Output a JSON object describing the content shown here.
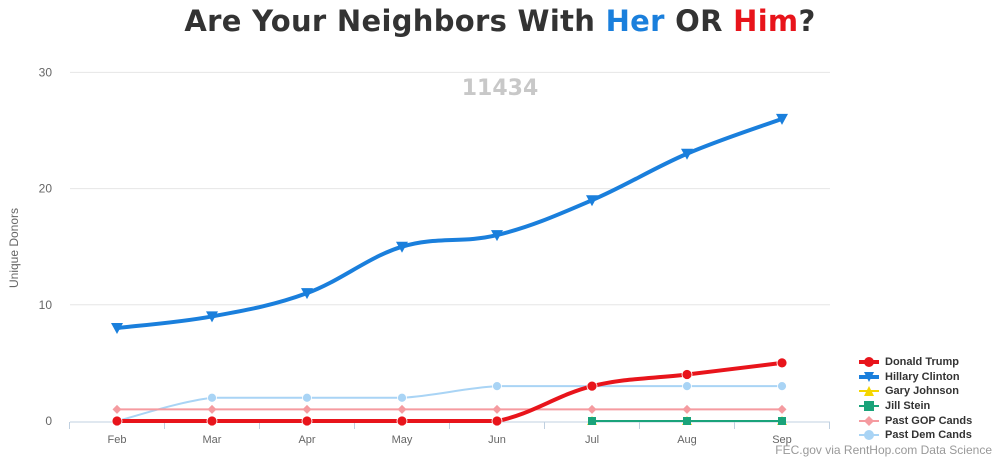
{
  "title": {
    "prefix": "Are Your Neighbors With ",
    "her": "Her",
    "middle": " OR ",
    "him": "Him",
    "suffix": "?"
  },
  "watermark": "11434",
  "credit": "FEC.gov via RentHop.com Data Science",
  "colors": {
    "trump": "#e8141b",
    "clinton": "#1a7fdc",
    "johnson": "#f5d600",
    "stein": "#1aa37a",
    "past_gop": "#f59ba0",
    "past_dem": "#a9d4f5",
    "title_text": "#333333",
    "grid": "#e6e6e6"
  },
  "chart_data": {
    "type": "line",
    "title": "Are Your Neighbors With Her OR Him?",
    "xlabel": "",
    "ylabel": "Unique Donors",
    "categories": [
      "Feb",
      "Mar",
      "Apr",
      "May",
      "Jun",
      "Jul",
      "Aug",
      "Sep"
    ],
    "y_ticks": [
      0,
      10,
      20,
      30
    ],
    "ylim": [
      0,
      30
    ],
    "grid": true,
    "legend_position": "bottom-right",
    "series": [
      {
        "name": "Donald Trump",
        "key": "trump",
        "marker": "circle",
        "values": [
          0,
          0,
          0,
          0,
          0,
          3,
          4,
          5
        ]
      },
      {
        "name": "Hillary Clinton",
        "key": "clinton",
        "marker": "triangle-down",
        "values": [
          8,
          9,
          11,
          15,
          16,
          19,
          23,
          26
        ]
      },
      {
        "name": "Gary Johnson",
        "key": "johnson",
        "marker": "triangle",
        "values": [
          null,
          null,
          null,
          null,
          null,
          0,
          0,
          0
        ]
      },
      {
        "name": "Jill Stein",
        "key": "stein",
        "marker": "square",
        "values": [
          null,
          null,
          null,
          null,
          null,
          0,
          0,
          0
        ]
      },
      {
        "name": "Past GOP Cands",
        "key": "past_gop",
        "marker": "diamond",
        "values": [
          1,
          1,
          1,
          1,
          1,
          1,
          1,
          1
        ]
      },
      {
        "name": "Past Dem Cands",
        "key": "past_dem",
        "marker": "circle",
        "values": [
          0,
          2,
          2,
          2,
          3,
          3,
          3,
          3
        ]
      }
    ]
  }
}
